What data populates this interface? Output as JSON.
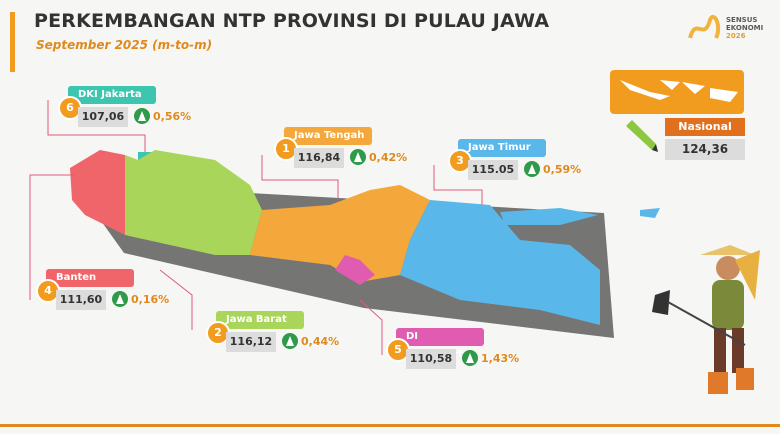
{
  "header": {
    "title": "PERKEMBANGAN NTP PROVINSI DI PULAU JAWA",
    "subtitle": "September 2025 (m-to-m)"
  },
  "logo": [
    "SENSUS",
    "EKONOMI",
    "2026"
  ],
  "provinces": [
    {
      "rank": "6",
      "name": "DKI Jakarta",
      "value": "107,06",
      "change": "0,56%"
    },
    {
      "rank": "1",
      "name": "Jawa Tengah",
      "value": "116,84",
      "change": "0,42%"
    },
    {
      "rank": "3",
      "name": "Jawa Timur",
      "value": "115.05",
      "change": "0,59%"
    },
    {
      "rank": "4",
      "name": "Banten",
      "value": "111,60",
      "change": "0,16%"
    },
    {
      "rank": "2",
      "name": "Jawa Barat",
      "value": "116,12",
      "change": "0,44%"
    },
    {
      "rank": "5",
      "name": "DI Yogyakarta",
      "value": "110,58",
      "change": "1,43%"
    }
  ],
  "national": {
    "name": "Nasional",
    "value": "124,36"
  }
}
